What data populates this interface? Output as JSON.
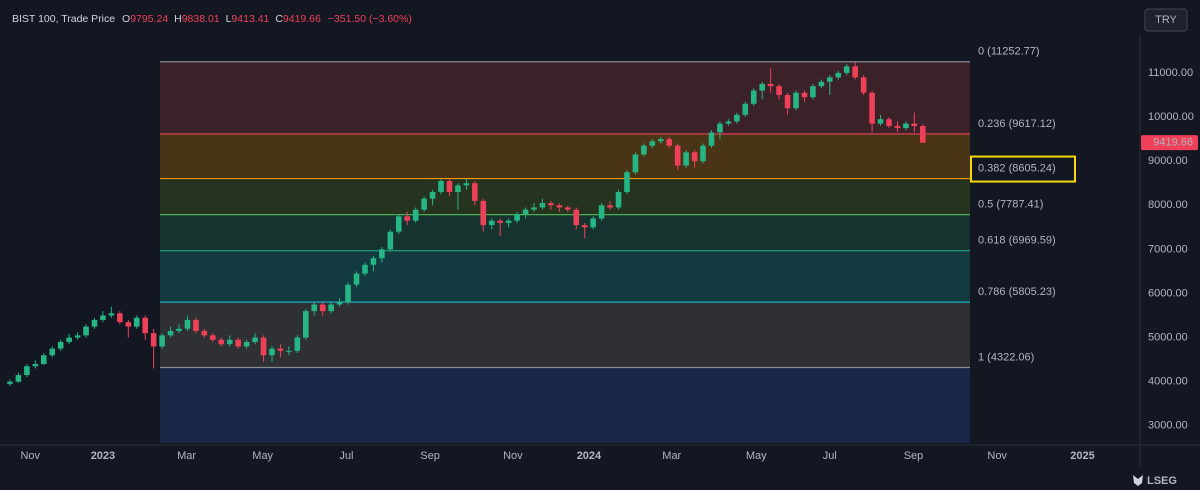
{
  "chart_data": {
    "type": "candlestick",
    "title": "BIST 100, Trade Price",
    "ohlc_letters": [
      "O",
      "H",
      "L",
      "C"
    ],
    "change": "−351.50 (−3.60%)",
    "currency": "TRY",
    "brand": "LSEG",
    "up_color": "#26b585",
    "down_color": "#ef4059",
    "grid": false,
    "ylim": [
      2610,
      11860
    ],
    "yticks": [
      {
        "value": 3000,
        "label": "3000.00"
      },
      {
        "value": 4000,
        "label": "4000.00"
      },
      {
        "value": 5000,
        "label": "5000.00"
      },
      {
        "value": 6000,
        "label": "6000.00"
      },
      {
        "value": 7000,
        "label": "7000.00"
      },
      {
        "value": 8000,
        "label": "8000.00"
      },
      {
        "value": 9000,
        "label": "9000.00"
      },
      {
        "value": 10000,
        "label": "10000.00"
      },
      {
        "value": 11000,
        "label": "11000.00"
      }
    ],
    "xlim": [
      -1.18,
      133.7
    ],
    "xticks": [
      {
        "value": 2.4,
        "label": "Nov"
      },
      {
        "value": 11,
        "label": "2023"
      },
      {
        "value": 20.9,
        "label": "Mar"
      },
      {
        "value": 29.9,
        "label": "May"
      },
      {
        "value": 39.8,
        "label": "Jul"
      },
      {
        "value": 49.7,
        "label": "Sep"
      },
      {
        "value": 59.5,
        "label": "Nov"
      },
      {
        "value": 68.5,
        "label": "2024"
      },
      {
        "value": 78.3,
        "label": "Mar"
      },
      {
        "value": 88.3,
        "label": "May"
      },
      {
        "value": 97,
        "label": "Jul"
      },
      {
        "value": 106.9,
        "label": "Sep"
      },
      {
        "value": 116.8,
        "label": "Nov"
      },
      {
        "value": 126.9,
        "label": "2025"
      }
    ],
    "fib_levels": [
      {
        "label": "0 (11252.77)",
        "price": 11252.77,
        "color": "#8a8d96",
        "fill": "#3a2228"
      },
      {
        "label": "0.236 (9617.12)",
        "price": 9617.12,
        "color": "#ef4059",
        "fill": "#4a3418"
      },
      {
        "label": "0.382 (8605.24)",
        "price": 8605.24,
        "color": "#ff9800",
        "fill": "#26331f",
        "highlight": true
      },
      {
        "label": "0.5 (7787.41)",
        "price": 7787.41,
        "color": "#4caf50",
        "fill": "#17332f"
      },
      {
        "label": "0.618 (6969.59)",
        "price": 6969.59,
        "color": "#1aa08a",
        "fill": "#133a3e"
      },
      {
        "label": "0.786 (5805.23)",
        "price": 5805.23,
        "color": "#1cb8d4",
        "fill": "#2e3033"
      },
      {
        "label": "1 (4322.06)",
        "price": 4322.06,
        "color": "#8a8d96",
        "fill": "#1b2747"
      }
    ],
    "ohlc": [
      [
        3950,
        4050,
        3900,
        4000
      ],
      [
        4000,
        4200,
        3980,
        4150
      ],
      [
        4150,
        4400,
        4100,
        4350
      ],
      [
        4350,
        4480,
        4300,
        4400
      ],
      [
        4400,
        4650,
        4380,
        4600
      ],
      [
        4600,
        4800,
        4550,
        4750
      ],
      [
        4750,
        4950,
        4700,
        4900
      ],
      [
        4900,
        5080,
        4850,
        5000
      ],
      [
        5000,
        5120,
        4950,
        5050
      ],
      [
        5050,
        5300,
        5000,
        5250
      ],
      [
        5250,
        5450,
        5200,
        5400
      ],
      [
        5400,
        5600,
        5350,
        5500
      ],
      [
        5500,
        5700,
        5450,
        5550
      ],
      [
        5550,
        5600,
        5300,
        5350
      ],
      [
        5350,
        5400,
        5000,
        5250
      ],
      [
        5250,
        5500,
        5200,
        5450
      ],
      [
        5450,
        5500,
        4950,
        5100
      ],
      [
        5100,
        5200,
        4300,
        4800
      ],
      [
        4800,
        5100,
        4750,
        5050
      ],
      [
        5050,
        5250,
        5000,
        5150
      ],
      [
        5150,
        5300,
        5100,
        5200
      ],
      [
        5200,
        5500,
        5150,
        5400
      ],
      [
        5400,
        5450,
        5100,
        5150
      ],
      [
        5150,
        5200,
        5000,
        5050
      ],
      [
        5050,
        5100,
        4900,
        4950
      ],
      [
        4950,
        5000,
        4800,
        4850
      ],
      [
        4850,
        5050,
        4800,
        4950
      ],
      [
        4950,
        5000,
        4750,
        4800
      ],
      [
        4800,
        4950,
        4750,
        4900
      ],
      [
        4900,
        5100,
        4850,
        5000
      ],
      [
        5000,
        5050,
        4450,
        4600
      ],
      [
        4600,
        4800,
        4450,
        4750
      ],
      [
        4750,
        4850,
        4550,
        4700
      ],
      [
        4700,
        4800,
        4600,
        4700
      ],
      [
        4700,
        5050,
        4650,
        5000
      ],
      [
        5000,
        5650,
        4950,
        5600
      ],
      [
        5600,
        5800,
        5500,
        5750
      ],
      [
        5750,
        5800,
        5500,
        5600
      ],
      [
        5600,
        5800,
        5550,
        5750
      ],
      [
        5750,
        5900,
        5700,
        5800
      ],
      [
        5800,
        6250,
        5750,
        6200
      ],
      [
        6200,
        6500,
        6150,
        6450
      ],
      [
        6450,
        6700,
        6400,
        6650
      ],
      [
        6650,
        6850,
        6500,
        6800
      ],
      [
        6800,
        7050,
        6700,
        7000
      ],
      [
        7000,
        7450,
        6950,
        7400
      ],
      [
        7400,
        7800,
        7350,
        7750
      ],
      [
        7750,
        7850,
        7550,
        7650
      ],
      [
        7650,
        7950,
        7600,
        7900
      ],
      [
        7900,
        8200,
        7850,
        8150
      ],
      [
        8150,
        8350,
        8000,
        8300
      ],
      [
        8300,
        8600,
        8250,
        8550
      ],
      [
        8550,
        8600,
        8200,
        8300
      ],
      [
        8300,
        8500,
        7900,
        8450
      ],
      [
        8450,
        8600,
        8350,
        8500
      ],
      [
        8500,
        8550,
        8000,
        8100
      ],
      [
        8100,
        8150,
        7400,
        7550
      ],
      [
        7550,
        7700,
        7450,
        7650
      ],
      [
        7650,
        7700,
        7300,
        7600
      ],
      [
        7600,
        7700,
        7500,
        7650
      ],
      [
        7650,
        7850,
        7600,
        7800
      ],
      [
        7800,
        7950,
        7700,
        7900
      ],
      [
        7900,
        8050,
        7850,
        7950
      ],
      [
        7950,
        8150,
        7900,
        8050
      ],
      [
        8050,
        8100,
        7900,
        8000
      ],
      [
        8000,
        8050,
        7850,
        7950
      ],
      [
        7950,
        8000,
        7850,
        7900
      ],
      [
        7900,
        7950,
        7450,
        7550
      ],
      [
        7550,
        7600,
        7250,
        7500
      ],
      [
        7500,
        7750,
        7450,
        7700
      ],
      [
        7700,
        8050,
        7650,
        8000
      ],
      [
        8000,
        8100,
        7900,
        7950
      ],
      [
        7950,
        8350,
        7900,
        8300
      ],
      [
        8300,
        8800,
        8250,
        8750
      ],
      [
        8750,
        9200,
        8700,
        9150
      ],
      [
        9150,
        9400,
        9100,
        9350
      ],
      [
        9350,
        9500,
        9300,
        9450
      ],
      [
        9450,
        9550,
        9400,
        9500
      ],
      [
        9500,
        9550,
        9300,
        9350
      ],
      [
        9350,
        9400,
        8800,
        8900
      ],
      [
        8900,
        9250,
        8850,
        9200
      ],
      [
        9200,
        9250,
        8850,
        9000
      ],
      [
        9000,
        9400,
        8950,
        9350
      ],
      [
        9350,
        9700,
        9300,
        9650
      ],
      [
        9650,
        9900,
        9500,
        9850
      ],
      [
        9850,
        9950,
        9800,
        9900
      ],
      [
        9900,
        10100,
        9850,
        10050
      ],
      [
        10050,
        10350,
        10000,
        10300
      ],
      [
        10300,
        10650,
        10250,
        10600
      ],
      [
        10600,
        10800,
        10400,
        10750
      ],
      [
        10750,
        11100,
        10550,
        10700
      ],
      [
        10700,
        10750,
        10400,
        10500
      ],
      [
        10500,
        10550,
        10050,
        10200
      ],
      [
        10200,
        10600,
        10150,
        10550
      ],
      [
        10550,
        10600,
        10350,
        10450
      ],
      [
        10450,
        10750,
        10400,
        10700
      ],
      [
        10700,
        10850,
        10650,
        10800
      ],
      [
        10800,
        10950,
        10500,
        10900
      ],
      [
        10900,
        11050,
        10850,
        11000
      ],
      [
        11000,
        11200,
        10950,
        11150
      ],
      [
        11150,
        11252.77,
        10850,
        10900
      ],
      [
        10900,
        10950,
        10500,
        10550
      ],
      [
        10550,
        10600,
        9650,
        9850
      ],
      [
        9850,
        10050,
        9800,
        9950
      ],
      [
        9950,
        10000,
        9750,
        9800
      ],
      [
        9800,
        9900,
        9650,
        9750
      ],
      [
        9750,
        9900,
        9700,
        9850
      ],
      [
        9850,
        10100,
        9650,
        9795.24
      ],
      [
        9795.24,
        9838.01,
        9413.41,
        9419.66
      ]
    ]
  }
}
